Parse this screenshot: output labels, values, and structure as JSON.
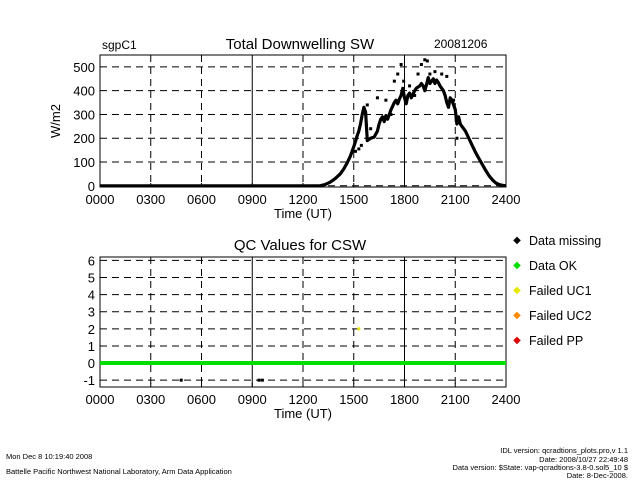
{
  "header": {
    "site": "sgpC1",
    "title": "Total Downwelling SW",
    "date": "20081206"
  },
  "qc_title": "QC Values for CSW",
  "legend": [
    {
      "label": "Data missing",
      "color": "#000000"
    },
    {
      "label": "Data OK",
      "color": "#00dd00"
    },
    {
      "label": "Failed UC1",
      "color": "#e8e800"
    },
    {
      "label": "Failed UC2",
      "color": "#ff8c00"
    },
    {
      "label": "Failed PP",
      "color": "#dd0000"
    }
  ],
  "footer": {
    "timestamp": "Mon Dec  8 10:19:40 2008",
    "org": "Battelle Pacific Northwest National Laboratory, Arm Data Application",
    "idl_version": "IDL version: qcradtions_plots.pro,v 1.1",
    "date_line": "Date: 2008/10/27 22:49:48",
    "data_version": "Data version: $State: vap-qcradtions-3.8-0.sol5_10 $",
    "date2": "Date: 8-Dec-2008."
  },
  "chart_data": [
    {
      "type": "scatter",
      "title": "Total Downwelling SW",
      "xlabel": "Time (UT)",
      "ylabel": "W/m2",
      "xlim": [
        0,
        2400
      ],
      "ylim": [
        -5,
        550
      ],
      "xticks": [
        "0000",
        "0300",
        "0600",
        "0900",
        "1200",
        "1500",
        "1800",
        "2100",
        "2400"
      ],
      "yticks": [
        0,
        100,
        200,
        300,
        400,
        500
      ],
      "grid": true,
      "series": [
        {
          "color": "#000000",
          "x": [
            0,
            1300,
            1330,
            1360,
            1390,
            1420,
            1440,
            1460,
            1480,
            1500,
            1510,
            1520,
            1530,
            1540,
            1550,
            1560,
            1570,
            1580,
            1600,
            1620,
            1640,
            1650,
            1660,
            1670,
            1680,
            1690,
            1700,
            1710,
            1720,
            1730,
            1740,
            1750,
            1760,
            1770,
            1780,
            1790,
            1800,
            1810,
            1820,
            1830,
            1840,
            1850,
            1860,
            1870,
            1880,
            1890,
            1900,
            1910,
            1920,
            1930,
            1940,
            1950,
            1960,
            1970,
            1980,
            1990,
            2000,
            2010,
            2020,
            2030,
            2040,
            2050,
            2060,
            2070,
            2080,
            2090,
            2100,
            2110,
            2120,
            2130,
            2140,
            2160,
            2180,
            2200,
            2220,
            2240,
            2260,
            2280,
            2300,
            2320,
            2340,
            2360,
            2380,
            2400
          ],
          "y": [
            0,
            0,
            5,
            15,
            30,
            50,
            70,
            95,
            125,
            165,
            185,
            210,
            230,
            260,
            300,
            330,
            310,
            190,
            200,
            205,
            230,
            260,
            280,
            290,
            270,
            295,
            280,
            300,
            320,
            335,
            350,
            360,
            345,
            365,
            380,
            410,
            370,
            345,
            380,
            390,
            370,
            385,
            400,
            410,
            415,
            420,
            430,
            420,
            400,
            425,
            455,
            430,
            440,
            450,
            430,
            445,
            435,
            420,
            410,
            400,
            380,
            350,
            330,
            370,
            360,
            340,
            320,
            260,
            290,
            260,
            250,
            230,
            200,
            170,
            140,
            115,
            90,
            65,
            42,
            25,
            12,
            5,
            2,
            0
          ]
        }
      ],
      "scattered_points": {
        "x": [
          1510,
          1530,
          1545,
          1580,
          1600,
          1640,
          1690,
          1720,
          1740,
          1760,
          1780,
          1795,
          1830,
          1860,
          1880,
          1900,
          1920,
          1935,
          1950,
          1980,
          2020,
          2050,
          2090,
          2110
        ],
        "y": [
          145,
          155,
          170,
          340,
          240,
          370,
          360,
          300,
          440,
          470,
          510,
          440,
          420,
          380,
          470,
          510,
          530,
          525,
          470,
          480,
          470,
          460,
          360,
          200
        ]
      }
    },
    {
      "type": "scatter",
      "title": "QC Values for CSW",
      "xlabel": "Time (UT)",
      "ylabel": "",
      "xlim": [
        0,
        2400
      ],
      "ylim": [
        -1.4,
        6.2
      ],
      "xticks": [
        "0000",
        "0300",
        "0600",
        "0900",
        "1200",
        "1500",
        "1800",
        "2100",
        "2400"
      ],
      "yticks": [
        -1,
        0,
        1,
        2,
        3,
        4,
        5,
        6
      ],
      "grid": true,
      "series": [
        {
          "name": "Data OK",
          "color": "#00dd00",
          "x": [
            0,
            2400
          ],
          "y": [
            0,
            0
          ]
        },
        {
          "name": "Failed UC1",
          "color": "#e8e800",
          "x": [
            1530
          ],
          "y": [
            2
          ]
        },
        {
          "name": "Data missing",
          "color": "#000000",
          "x": [
            480,
            940,
            960
          ],
          "y": [
            -1,
            -1,
            -1
          ]
        }
      ]
    }
  ]
}
